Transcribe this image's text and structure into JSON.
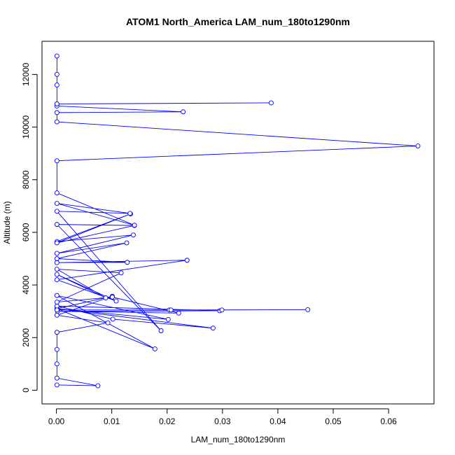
{
  "chart_data": {
    "type": "line",
    "title": "ATOM1 North_America LAM_num_180to1290nm",
    "xlabel": "LAM_num_180to1290nm",
    "ylabel": "Altitude (m)",
    "xlim": [
      -0.0026,
      0.0682
    ],
    "ylim": [
      -520,
      13260
    ],
    "xticks": [
      0.0,
      0.01,
      0.02,
      0.03,
      0.04,
      0.05,
      0.06
    ],
    "xtick_labels": [
      "0.00",
      "0.01",
      "0.02",
      "0.03",
      "0.04",
      "0.05",
      "0.06"
    ],
    "yticks": [
      0,
      2000,
      4000,
      6000,
      8000,
      10000,
      12000
    ],
    "ytick_labels": [
      "0",
      "2000",
      "4000",
      "6000",
      "8000",
      "10000",
      "12000"
    ],
    "series_color": "#0000ff",
    "markers": "open-circle",
    "grid": false,
    "series": [
      {
        "points": [
          [
            0.0001,
            200
          ],
          [
            0.0075,
            170
          ],
          [
            0.0001,
            460
          ],
          [
            0.0001,
            1000
          ],
          [
            0.0001,
            1550
          ],
          [
            0.0001,
            2200
          ],
          [
            0.0093,
            2560
          ],
          [
            0.0001,
            2850
          ],
          [
            0.0101,
            3570
          ],
          [
            0.0001,
            3100
          ],
          [
            0.0202,
            2690
          ],
          [
            0.0001,
            3600
          ],
          [
            0.0178,
            1570
          ],
          [
            0.0001,
            3100
          ],
          [
            0.0283,
            2360
          ],
          [
            0.0102,
            2700
          ],
          [
            0.0001,
            3200
          ],
          [
            0.0295,
            3020
          ],
          [
            0.0002,
            3000
          ],
          [
            0.0221,
            2930
          ],
          [
            0.0101,
            3540
          ],
          [
            0.0001,
            3350
          ],
          [
            0.0117,
            4460
          ],
          [
            0.0001,
            4600
          ],
          [
            0.0089,
            3510
          ],
          [
            0.0001,
            4400
          ],
          [
            0.0108,
            3390
          ],
          [
            0.0001,
            4200
          ],
          [
            0.0236,
            4940
          ],
          [
            0.0001,
            4850
          ],
          [
            0.0128,
            4860
          ],
          [
            0.0001,
            5000
          ],
          [
            0.0127,
            5600
          ],
          [
            0.0001,
            5200
          ],
          [
            0.0139,
            5900
          ],
          [
            0.0001,
            5650
          ],
          [
            0.0134,
            6700
          ],
          [
            0.0001,
            5600
          ],
          [
            0.0141,
            6260
          ],
          [
            0.0001,
            6300
          ],
          [
            0.0189,
            2260
          ],
          [
            0.0001,
            6800
          ],
          [
            0.0133,
            6720
          ],
          [
            0.0001,
            7100
          ],
          [
            0.0141,
            6270
          ],
          [
            0.0001,
            7500
          ],
          [
            0.0001,
            8720
          ],
          [
            0.0653,
            9280
          ],
          [
            0.0001,
            10200
          ],
          [
            0.0001,
            10550
          ],
          [
            0.0229,
            10580
          ],
          [
            0.0001,
            10800
          ],
          [
            0.0001,
            10880
          ],
          [
            0.0388,
            10920
          ],
          [
            0.0001,
            10880
          ],
          [
            0.0001,
            11600
          ],
          [
            0.0001,
            12000
          ],
          [
            0.0001,
            12700
          ]
        ]
      },
      {
        "points": [
          [
            0.0001,
            3050
          ],
          [
            0.0204,
            3050
          ],
          [
            0.0454,
            3060
          ],
          [
            0.0299,
            3050
          ],
          [
            0.0207,
            3050
          ]
        ]
      }
    ]
  }
}
